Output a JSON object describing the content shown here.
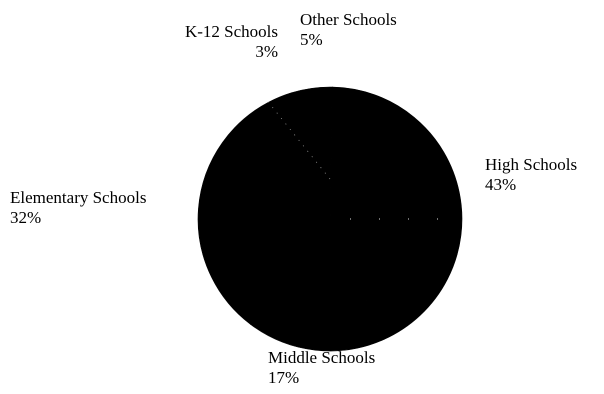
{
  "chart_data": {
    "type": "pie",
    "title": "",
    "slices": [
      {
        "label": "High Schools",
        "value": 43,
        "value_label": "43%"
      },
      {
        "label": "Middle Schools",
        "value": 17,
        "value_label": "17%"
      },
      {
        "label": "Elementary Schools",
        "value": 32,
        "value_label": "32%"
      },
      {
        "label": "K-12 Schools",
        "value": 3,
        "value_label": "3%"
      },
      {
        "label": "Other Schools",
        "value": 5,
        "value_label": "5%"
      }
    ],
    "slice_color": "#000000",
    "separator_color": "#ffffff",
    "legend": "none"
  }
}
